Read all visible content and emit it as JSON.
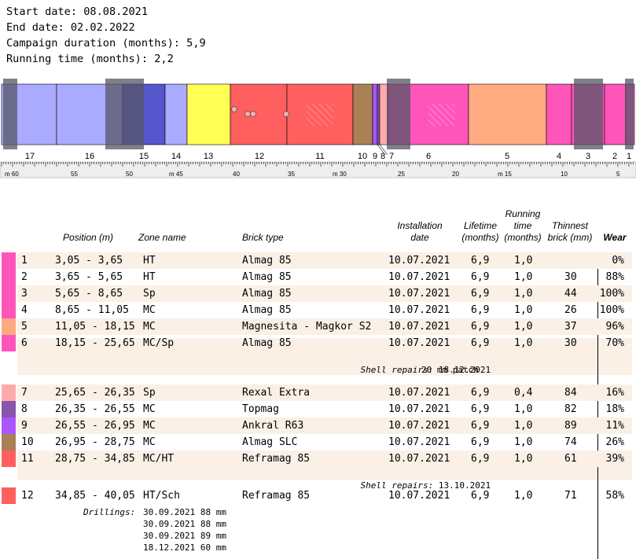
{
  "header": {
    "start_date": "Start date: 08.08.2021",
    "end_date": "End date: 02.02.2022",
    "campaign_duration": "Campaign duration (months): 5,9",
    "running_time": "Running time (months): 2,2"
  },
  "kiln": {
    "zone_numbers": [
      "17",
      "16",
      "15",
      "14",
      "13",
      "12",
      "11",
      "10",
      "9",
      "8",
      "7",
      "6",
      "5",
      "4",
      "3",
      "2",
      "1"
    ],
    "scale_labels": [
      "m 60",
      "55",
      "50",
      "m 45",
      "40",
      "35",
      "m 30",
      "25",
      "20",
      "m 15",
      "10",
      "5"
    ]
  },
  "table": {
    "headers": {
      "position": "Position (m)",
      "zone": "Zone name",
      "brick": "Brick type",
      "installation_1": "Installation",
      "installation_2": "date",
      "lifetime_1": "Lifetime",
      "lifetime_2": "(months)",
      "running_1": "Running",
      "running_2": "time",
      "running_3": "(months)",
      "thinnest_1": "Thinnest",
      "thinnest_2": "brick (mm)",
      "wear": "Wear"
    },
    "rows": [
      {
        "num": "1",
        "position": "3,05 - 3,65",
        "zone": "HT",
        "brick": "Almag 85",
        "date": "10.07.2021",
        "lifetime": "6,9",
        "running": "1,0",
        "thinnest": "",
        "wear": "0%",
        "color": "#ff55bb"
      },
      {
        "num": "2",
        "position": "3,65 - 5,65",
        "zone": "HT",
        "brick": "Almag 85",
        "date": "10.07.2021",
        "lifetime": "6,9",
        "running": "1,0",
        "thinnest": "30",
        "wear": "88%",
        "color": "#ff55bb"
      },
      {
        "num": "3",
        "position": "5,65 - 8,65",
        "zone": "Sp",
        "brick": "Almag 85",
        "date": "10.07.2021",
        "lifetime": "6,9",
        "running": "1,0",
        "thinnest": "44",
        "wear": "100%",
        "color": "#ff55bb"
      },
      {
        "num": "4",
        "position": "8,65 - 11,05",
        "zone": "MC",
        "brick": "Almag 85",
        "date": "10.07.2021",
        "lifetime": "6,9",
        "running": "1,0",
        "thinnest": "26",
        "wear": "100%",
        "color": "#ff55bb"
      },
      {
        "num": "5",
        "position": "11,05 - 18,15",
        "zone": "MC",
        "brick": "Magnesita - Magkor S2",
        "date": "10.07.2021",
        "lifetime": "6,9",
        "running": "1,0",
        "thinnest": "37",
        "wear": "96%",
        "color": "#ffaa80"
      },
      {
        "num": "6",
        "position": "18,15 - 25,65",
        "zone": "MC/Sp",
        "brick": "Almag 85",
        "date": "10.07.2021",
        "lifetime": "6,9",
        "running": "1,0",
        "thinnest": "30",
        "wear": "70%",
        "color": "#ff55bb"
      },
      {
        "num": "7",
        "position": "25,65 - 26,35",
        "zone": "Sp",
        "brick": "Rexal Extra",
        "date": "10.07.2021",
        "lifetime": "6,9",
        "running": "0,4",
        "thinnest": "84",
        "wear": "16%",
        "color": "#ffaaaa"
      },
      {
        "num": "8",
        "position": "26,35 - 26,55",
        "zone": "MC",
        "brick": "Topmag",
        "date": "10.07.2021",
        "lifetime": "6,9",
        "running": "1,0",
        "thinnest": "82",
        "wear": "18%",
        "color": "#8855aa"
      },
      {
        "num": "9",
        "position": "26,55 - 26,95",
        "zone": "MC",
        "brick": "Ankral R63",
        "date": "10.07.2021",
        "lifetime": "6,9",
        "running": "1,0",
        "thinnest": "89",
        "wear": "11%",
        "color": "#aa55ff"
      },
      {
        "num": "10",
        "position": "26,95 - 28,75",
        "zone": "MC",
        "brick": "Almag SLC",
        "date": "10.07.2021",
        "lifetime": "6,9",
        "running": "1,0",
        "thinnest": "74",
        "wear": "26%",
        "color": "#aa8055"
      },
      {
        "num": "11",
        "position": "28,75 - 34,85",
        "zone": "MC/HT",
        "brick": "Reframag 85",
        "date": "10.07.2021",
        "lifetime": "6,9",
        "running": "1,0",
        "thinnest": "61",
        "wear": "39%",
        "color": "#ff5f5f"
      },
      {
        "num": "12",
        "position": "34,85 - 40,05",
        "zone": "HT/Sch",
        "brick": "Reframag 85",
        "date": "10.07.2021",
        "lifetime": "6,9",
        "running": "1,0",
        "thinnest": "71",
        "wear": "58%",
        "color": "#ff5f5f"
      }
    ],
    "notes": {
      "shell6_label": "Shell repairs:",
      "shell6_line1": "18.12.2021",
      "shell6_line2": "20 mm patch",
      "shell11_label": "Shell repairs:",
      "shell11_line1": "13.10.2021",
      "drill_label": "Drillings:",
      "drill_lines": [
        "30.09.2021 88 mm",
        "30.09.2021 88 mm",
        "30.09.2021 89 mm",
        "18.12.2021 60 mm"
      ]
    }
  }
}
